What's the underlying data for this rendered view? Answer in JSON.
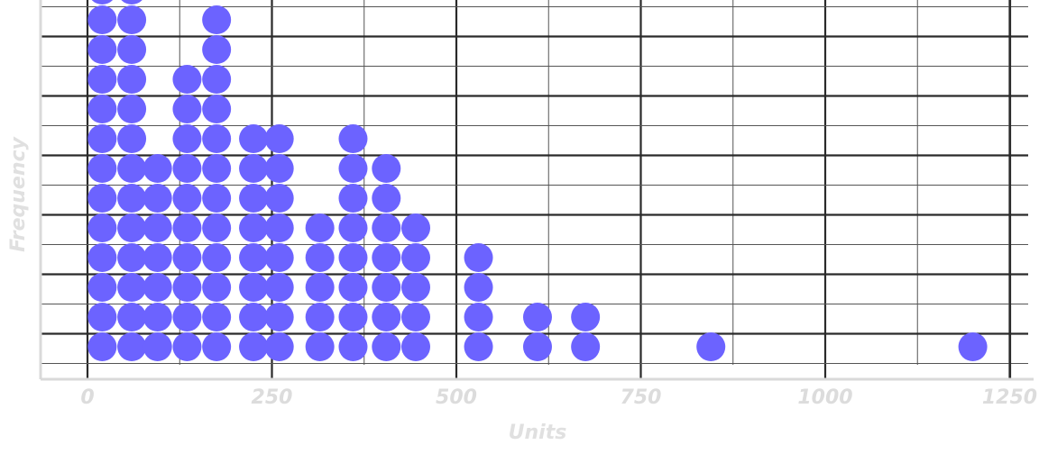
{
  "chart_data": {
    "type": "scatter",
    "subtype": "dot-plot",
    "title": "",
    "xlabel": "Units",
    "ylabel": "Frequency",
    "xlim": [
      -12,
      1262
    ],
    "x_ticks": [
      0,
      250,
      500,
      750,
      1000,
      1250
    ],
    "x_tick_labels": [
      "0",
      "250",
      "500",
      "750",
      "1000",
      "1250"
    ],
    "grid": true,
    "legend": "none",
    "dot_color": "#6c63ff",
    "columns": [
      {
        "x": 20,
        "count": 13
      },
      {
        "x": 60,
        "count": 13
      },
      {
        "x": 95,
        "count": 7
      },
      {
        "x": 135,
        "count": 10
      },
      {
        "x": 175,
        "count": 12
      },
      {
        "x": 225,
        "count": 8
      },
      {
        "x": 260,
        "count": 8
      },
      {
        "x": 315,
        "count": 5
      },
      {
        "x": 360,
        "count": 8
      },
      {
        "x": 405,
        "count": 7
      },
      {
        "x": 445,
        "count": 5
      },
      {
        "x": 530,
        "count": 4
      },
      {
        "x": 610,
        "count": 2
      },
      {
        "x": 675,
        "count": 2
      },
      {
        "x": 845,
        "count": 1
      },
      {
        "x": 1200,
        "count": 1
      }
    ]
  }
}
